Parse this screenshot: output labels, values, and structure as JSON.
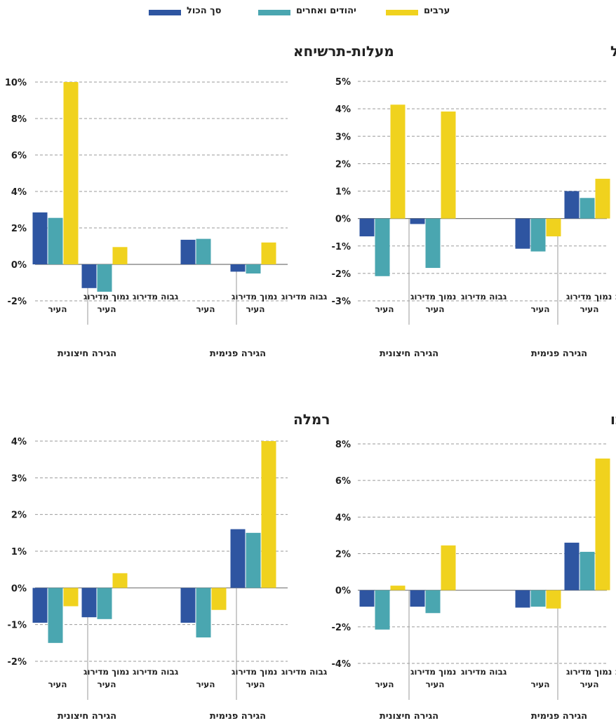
{
  "legend": [
    {
      "name": "ערבים",
      "color": "#f0d21e"
    },
    {
      "name": "יהודים ואחרים",
      "color": "#4aa6b0"
    },
    {
      "name": "סך הכול",
      "color": "#2e55a1"
    }
  ],
  "colors": {
    "total": "#2e55a1",
    "jews": "#4aa6b0",
    "arabs": "#f0d21e",
    "grid": "#9a9a9a",
    "divider": "#999999"
  },
  "chart_data": [
    {
      "type": "bar",
      "title": "נוף הגליל",
      "ylim": [
        -3,
        5
      ],
      "yticks": [
        5,
        4,
        3,
        2,
        1,
        0,
        -1,
        -2,
        -3
      ],
      "ytick_labels": [
        "5%",
        "4%",
        "3%",
        "2%",
        "1%",
        "0%",
        "-1%",
        "-2%",
        "-3%"
      ],
      "groups": [
        {
          "label": "הגירה פנימית",
          "categories": [
            {
              "label": [
                "גבוה מדירוג",
                "העיר"
              ],
              "values": {
                "total": 1.0,
                "jews": 0.75,
                "arabs": 1.45
              }
            },
            {
              "label": [
                "נמוך מדירוג",
                "העיר"
              ],
              "values": {
                "total": -1.1,
                "jews": -1.2,
                "arabs": -0.65
              }
            }
          ]
        },
        {
          "label": "הגירה חיצונית",
          "categories": [
            {
              "label": [
                "גבוה מדירוג",
                "העיר"
              ],
              "values": {
                "total": -0.2,
                "jews": -1.8,
                "arabs": 3.9
              }
            },
            {
              "label": [
                "נמוך מדירוג",
                "העיר"
              ],
              "values": {
                "total": -0.65,
                "jews": -2.1,
                "arabs": 4.15
              }
            }
          ]
        }
      ]
    },
    {
      "type": "bar",
      "title": "מעלות-תרשיחא",
      "ylim": [
        -2,
        10
      ],
      "yticks": [
        10,
        8,
        6,
        4,
        2,
        0,
        -2
      ],
      "ytick_labels": [
        "10%",
        "8%",
        "6%",
        "4%",
        "2%",
        "0%",
        "-2%"
      ],
      "groups": [
        {
          "label": "הגירה פנימית",
          "categories": [
            {
              "label": [
                "גבוה מדירוג",
                "העיר"
              ],
              "values": {
                "total": -0.4,
                "jews": -0.5,
                "arabs": 1.2
              }
            },
            {
              "label": [
                "נמוך מדירוג",
                "העיר"
              ],
              "values": {
                "total": 1.35,
                "jews": 1.4,
                "arabs": null
              }
            }
          ]
        },
        {
          "label": "הגירה חיצונית",
          "categories": [
            {
              "label": [
                "גבוה מדירוג",
                "העיר"
              ],
              "values": {
                "total": -1.3,
                "jews": -1.5,
                "arabs": 0.95
              }
            },
            {
              "label": [
                "נמוך מדירוג",
                "העיר"
              ],
              "values": {
                "total": 2.85,
                "jews": 2.55,
                "arabs": 10.0
              }
            }
          ]
        }
      ]
    },
    {
      "type": "bar",
      "title": "עכו",
      "ylim": [
        -4,
        8
      ],
      "yticks": [
        8,
        6,
        4,
        2,
        0,
        -2,
        -4
      ],
      "ytick_labels": [
        "8%",
        "6%",
        "4%",
        "2%",
        "0%",
        "-2%",
        "-4%"
      ],
      "groups": [
        {
          "label": "הגירה פנימית",
          "categories": [
            {
              "label": [
                "גבוה מדירוג",
                "העיר"
              ],
              "values": {
                "total": 2.6,
                "jews": 2.1,
                "arabs": 7.2
              }
            },
            {
              "label": [
                "נמוך מדירוג",
                "העיר"
              ],
              "values": {
                "total": -0.95,
                "jews": -0.9,
                "arabs": -1.0
              }
            }
          ]
        },
        {
          "label": "הגירה חיצונית",
          "categories": [
            {
              "label": [
                "גבוה מדירוג",
                "העיר"
              ],
              "values": {
                "total": -0.9,
                "jews": -1.25,
                "arabs": 2.45
              }
            },
            {
              "label": [
                "נמוך מדירוג",
                "העיר"
              ],
              "values": {
                "total": -0.9,
                "jews": -2.15,
                "arabs": 0.25
              }
            }
          ]
        }
      ]
    },
    {
      "type": "bar",
      "title": "רמלה",
      "ylim": [
        -2,
        4
      ],
      "yticks": [
        4,
        3,
        2,
        1,
        0,
        -1,
        -2
      ],
      "ytick_labels": [
        "4%",
        "3%",
        "2%",
        "1%",
        "0%",
        "-1%",
        "-2%"
      ],
      "groups": [
        {
          "label": "הגירה פנימית",
          "categories": [
            {
              "label": [
                "גבוה מדירוג",
                "העיר"
              ],
              "values": {
                "total": 1.6,
                "jews": 1.5,
                "arabs": 4.0
              }
            },
            {
              "label": [
                "נמוך מדירוג",
                "העיר"
              ],
              "values": {
                "total": -0.95,
                "jews": -1.35,
                "arabs": -0.6
              }
            }
          ]
        },
        {
          "label": "הגירה חיצונית",
          "categories": [
            {
              "label": [
                "גבוה מדירוג",
                "העיר"
              ],
              "values": {
                "total": -0.8,
                "jews": -0.85,
                "arabs": 0.4
              }
            },
            {
              "label": [
                "נמוך מדירוג",
                "העיר"
              ],
              "values": {
                "total": -0.95,
                "jews": -1.5,
                "arabs": -0.5
              }
            }
          ]
        }
      ]
    }
  ]
}
